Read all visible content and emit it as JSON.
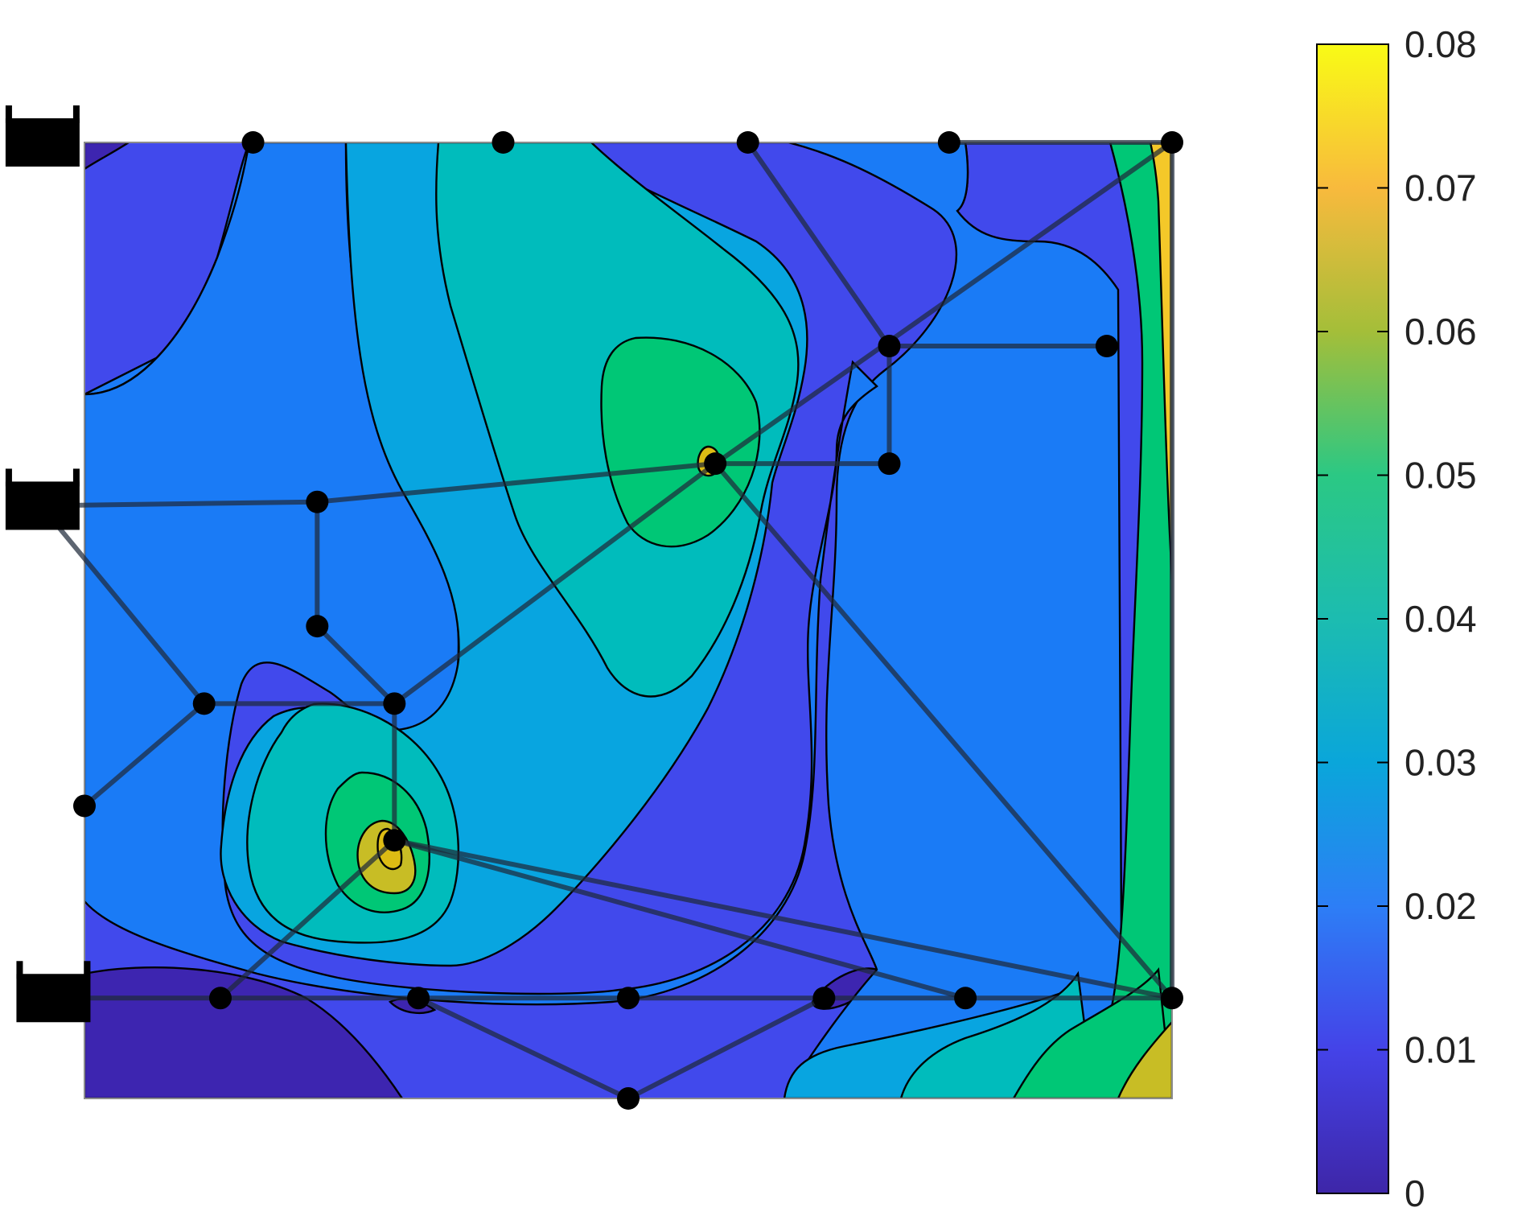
{
  "chart_data": {
    "type": "heatmap",
    "title": "",
    "xlabel": "",
    "ylabel": "",
    "colorbar": {
      "min": 0,
      "max": 0.08,
      "ticks": [
        0,
        0.01,
        0.02,
        0.03,
        0.04,
        0.05,
        0.06,
        0.07,
        0.08
      ],
      "tick_labels": [
        "0",
        "0.01",
        "0.02",
        "0.03",
        "0.04",
        "0.05",
        "0.06",
        "0.07",
        "0.08"
      ]
    },
    "colormap": {
      "name": "parula",
      "stops": [
        "#3e26a8",
        "#4443e8",
        "#2d7ef6",
        "#0aa6da",
        "#1cbcb0",
        "#2bc884",
        "#a4be39",
        "#f8ba3d",
        "#f9fb15"
      ],
      "levels": [
        {
          "min": 0.0,
          "max": 0.01,
          "color": "#3d25b0"
        },
        {
          "min": 0.01,
          "max": 0.02,
          "color": "#4149ec"
        },
        {
          "min": 0.02,
          "max": 0.025,
          "color": "#1a7bf6"
        },
        {
          "min": 0.025,
          "max": 0.035,
          "color": "#08a5e0"
        },
        {
          "min": 0.035,
          "max": 0.045,
          "color": "#00bcbc"
        },
        {
          "min": 0.045,
          "max": 0.055,
          "color": "#00c776"
        },
        {
          "min": 0.055,
          "max": 0.065,
          "color": "#c8bd25"
        },
        {
          "min": 0.065,
          "max": 0.075,
          "color": "#ddbc14"
        },
        {
          "min": 0.075,
          "max": 0.08,
          "color": "#f4c829"
        }
      ]
    },
    "domain": {
      "x": [
        0,
        1
      ],
      "y": [
        0,
        1
      ]
    },
    "peaks": [
      {
        "x": 0.58,
        "y": 0.665,
        "value": 0.072
      },
      {
        "x": 0.285,
        "y": 0.27,
        "value": 0.07
      },
      {
        "x": 1.0,
        "y": 1.0,
        "value": 0.075
      },
      {
        "x": 1.0,
        "y": 0.0,
        "value": 0.065
      }
    ],
    "supports": [
      {
        "x": -0.04,
        "y": 1.0
      },
      {
        "x": -0.04,
        "y": 0.62
      },
      {
        "x": -0.03,
        "y": 0.105
      }
    ],
    "nodes": [
      {
        "x": 0.155,
        "y": 1.0
      },
      {
        "x": 0.385,
        "y": 1.0
      },
      {
        "x": 0.61,
        "y": 1.0
      },
      {
        "x": 0.795,
        "y": 1.0
      },
      {
        "x": 1.0,
        "y": 1.0
      },
      {
        "x": 0.74,
        "y": 0.787
      },
      {
        "x": 0.94,
        "y": 0.787
      },
      {
        "x": 0.58,
        "y": 0.664
      },
      {
        "x": 0.74,
        "y": 0.664
      },
      {
        "x": 0.214,
        "y": 0.624
      },
      {
        "x": 0.214,
        "y": 0.494
      },
      {
        "x": 0.11,
        "y": 0.413
      },
      {
        "x": 0.285,
        "y": 0.413
      },
      {
        "x": 0.0,
        "y": 0.306
      },
      {
        "x": 0.285,
        "y": 0.27
      },
      {
        "x": 0.125,
        "y": 0.105
      },
      {
        "x": 0.307,
        "y": 0.105
      },
      {
        "x": 0.5,
        "y": 0.105
      },
      {
        "x": 0.68,
        "y": 0.105
      },
      {
        "x": 0.81,
        "y": 0.105
      },
      {
        "x": 1.0,
        "y": 0.105
      },
      {
        "x": 0.5,
        "y": 0.0
      }
    ],
    "members": [
      [
        -0.04,
        0.62,
        0.214,
        0.624
      ],
      [
        0.214,
        0.624,
        0.58,
        0.664
      ],
      [
        0.58,
        0.664,
        0.74,
        0.664
      ],
      [
        0.214,
        0.624,
        0.214,
        0.494
      ],
      [
        0.214,
        0.494,
        0.285,
        0.413
      ],
      [
        -0.04,
        0.62,
        0.11,
        0.413
      ],
      [
        0.11,
        0.413,
        0.285,
        0.413
      ],
      [
        0.11,
        0.413,
        0.0,
        0.306
      ],
      [
        0.285,
        0.413,
        0.285,
        0.27
      ],
      [
        0.285,
        0.413,
        0.58,
        0.664
      ],
      [
        0.58,
        0.664,
        1.0,
        1.0
      ],
      [
        0.58,
        0.664,
        1.0,
        0.105
      ],
      [
        0.61,
        1.0,
        0.74,
        0.787
      ],
      [
        0.74,
        0.787,
        0.94,
        0.787
      ],
      [
        0.74,
        0.787,
        0.74,
        0.664
      ],
      [
        0.795,
        1.0,
        1.0,
        1.0
      ],
      [
        1.0,
        1.0,
        1.0,
        0.105
      ],
      [
        -0.03,
        0.105,
        1.0,
        0.105
      ],
      [
        0.125,
        0.105,
        0.285,
        0.27
      ],
      [
        0.285,
        0.27,
        1.0,
        0.105
      ],
      [
        0.285,
        0.27,
        0.81,
        0.105
      ],
      [
        0.307,
        0.105,
        0.5,
        0.0
      ],
      [
        0.5,
        0.0,
        0.68,
        0.105
      ]
    ]
  }
}
